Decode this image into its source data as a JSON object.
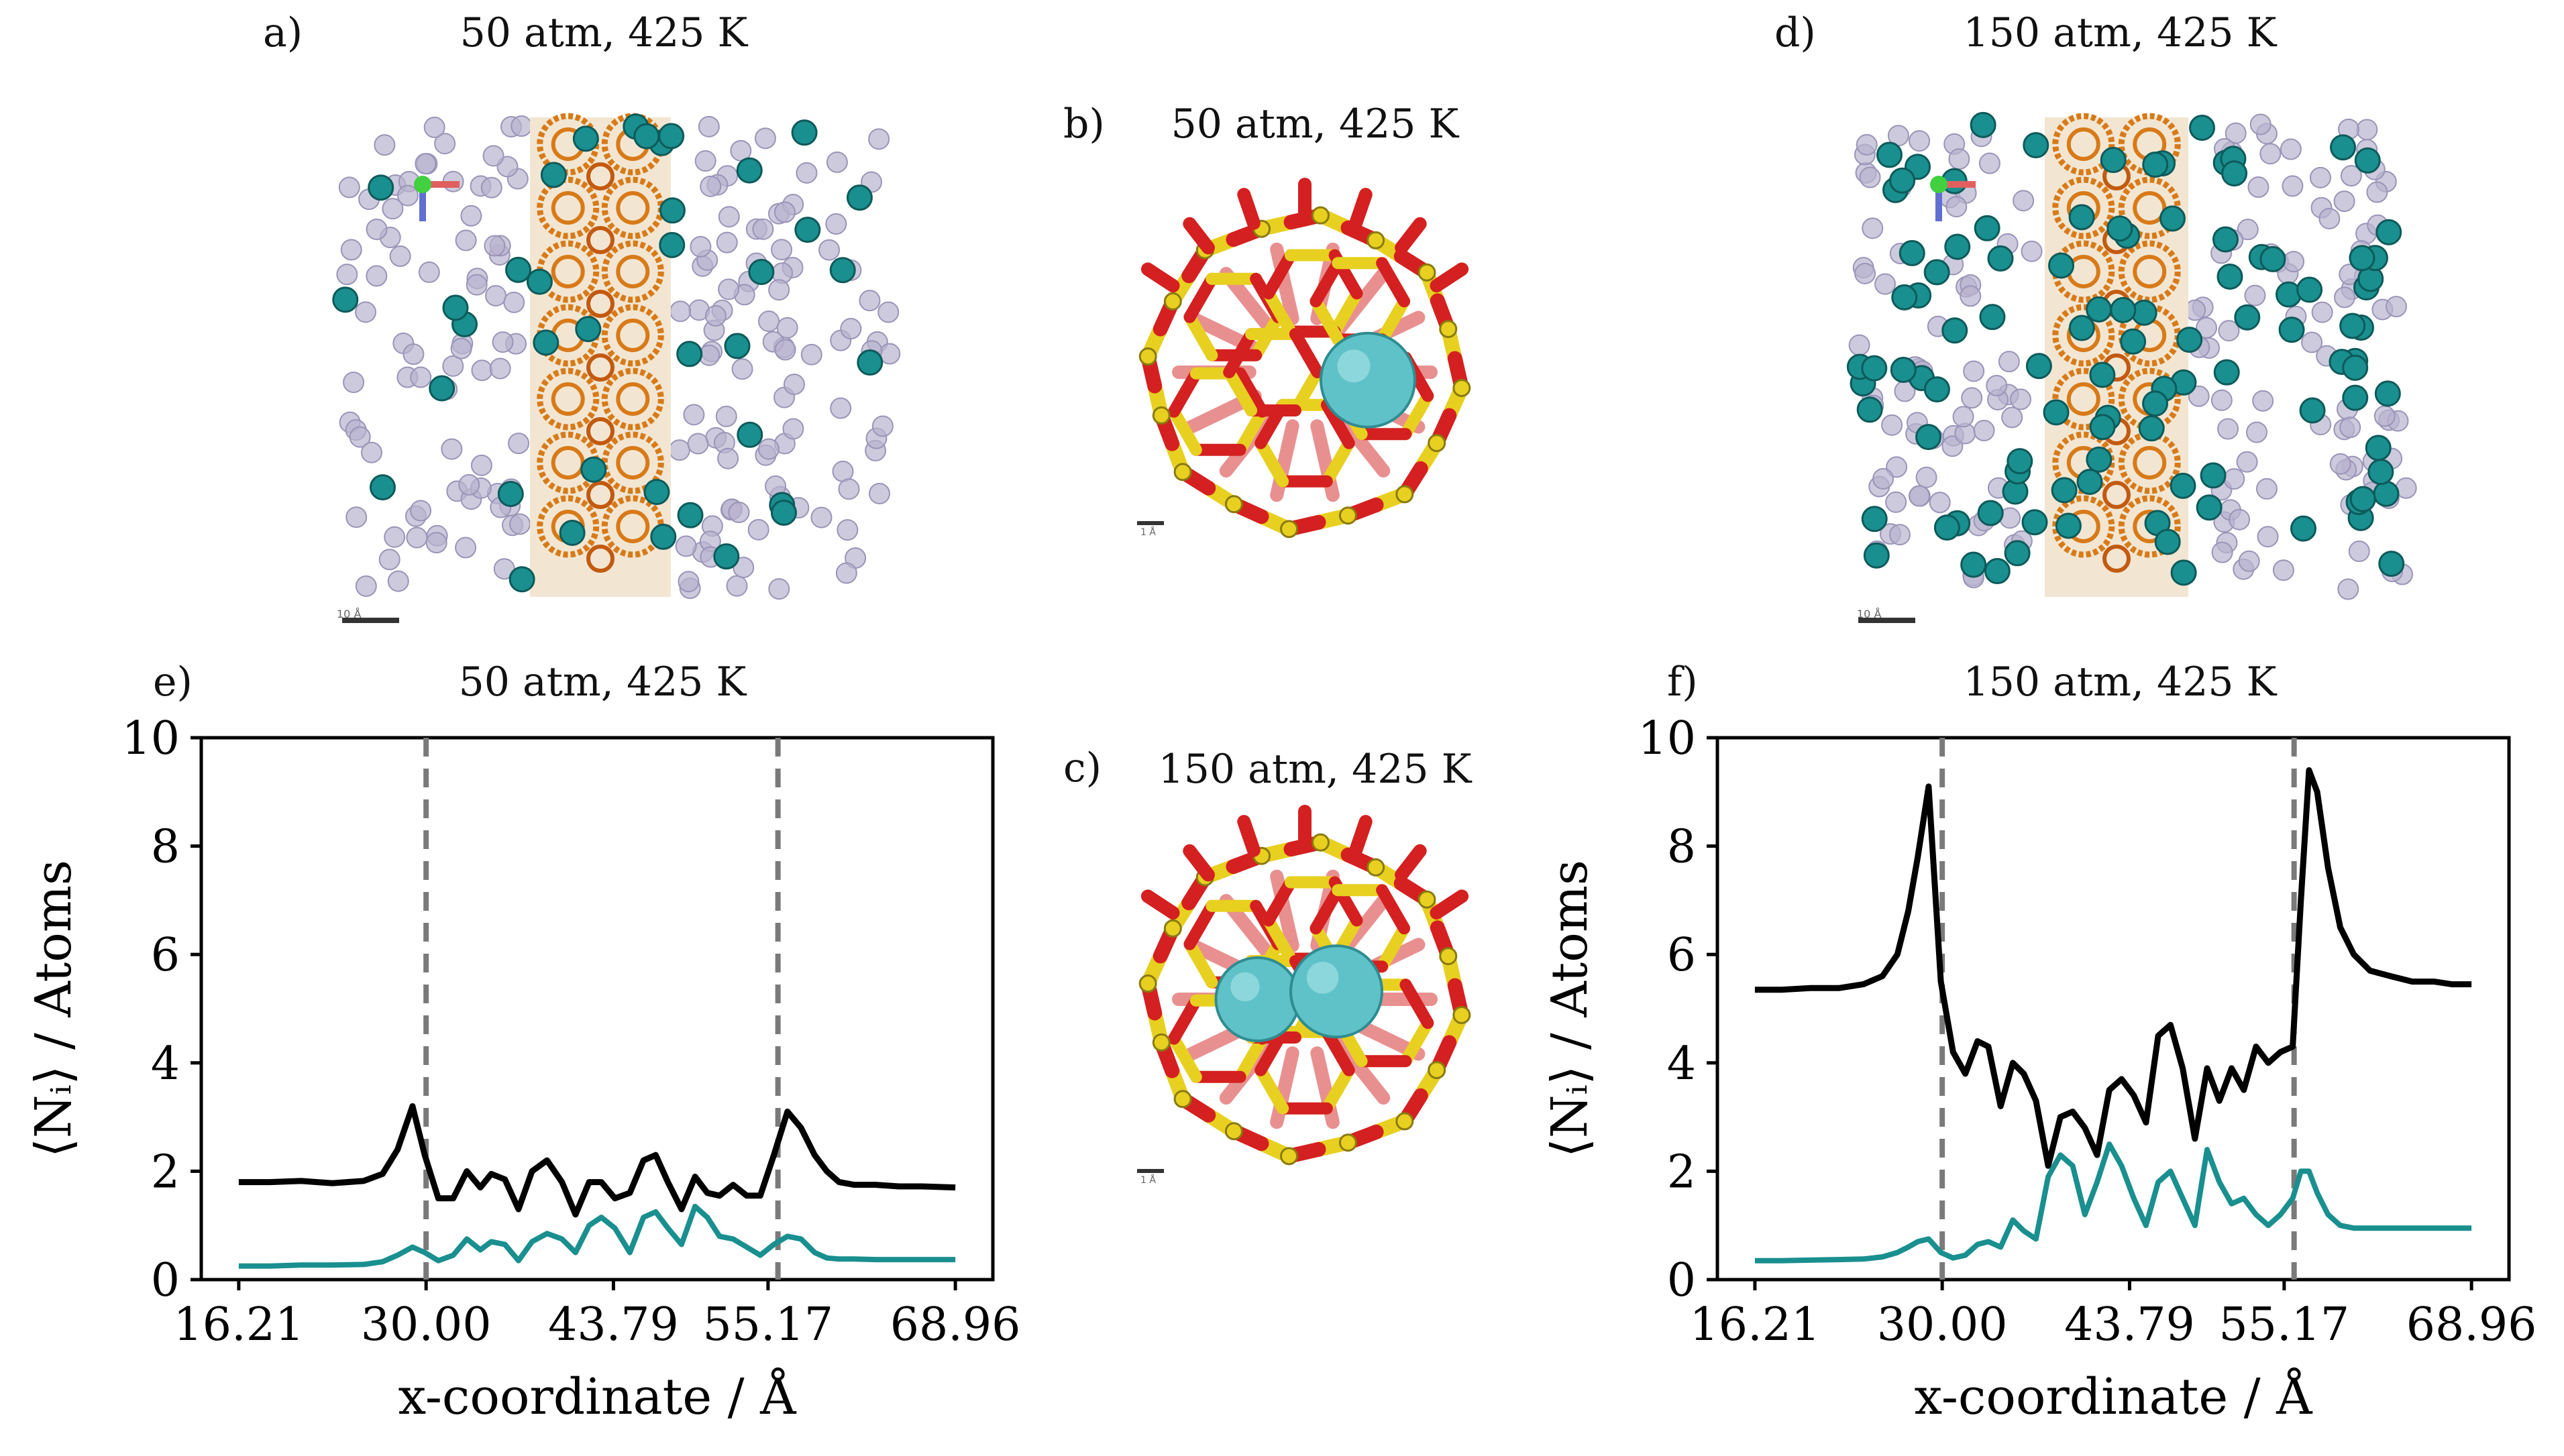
{
  "panels": {
    "a": {
      "label": "a)",
      "title": "50 atm, 425 K",
      "scalebar": "10 Å"
    },
    "b": {
      "label": "b)",
      "title": "50 atm, 425 K",
      "scalebar": "1 Å"
    },
    "c": {
      "label": "c)",
      "title": "150 atm, 425 K",
      "scalebar": "1 Å"
    },
    "d": {
      "label": "d)",
      "title": "150 atm, 425 K",
      "scalebar": "10 Å"
    },
    "e": {
      "label": "e)",
      "title": "50 atm, 425 K"
    },
    "f": {
      "label": "f)",
      "title": "150 atm, 425 K"
    }
  },
  "colors": {
    "teal": "#1a8f8f",
    "black": "#000000",
    "zeolite_red": "#d42020",
    "zeolite_yellow": "#e8d020",
    "framework_orange": "#d87a18",
    "ghost": "#b9b4cf",
    "dashed": "#7a7a7a"
  },
  "chart_data": [
    {
      "type": "line",
      "panel": "e",
      "title": "50 atm, 425 K",
      "xlabel": "x-coordinate / Å",
      "ylabel": "⟨Nᵢ⟩ / Atoms",
      "xlim": [
        13.45,
        71.72
      ],
      "ylim": [
        0,
        10
      ],
      "xticks": [
        16.21,
        30.0,
        43.79,
        55.17,
        68.96
      ],
      "xticklabels": [
        "16.21",
        "30.00",
        "43.79",
        "55.17",
        "68.96"
      ],
      "yticks": [
        0,
        2,
        4,
        6,
        8,
        10
      ],
      "yticklabels": [
        "0",
        "2",
        "4",
        "6",
        "8",
        "10"
      ],
      "vlines": [
        30.0,
        55.9
      ],
      "series": [
        {
          "name": "total",
          "color": "#000000",
          "x": [
            16.21,
            18.5,
            20.8,
            23.1,
            25.4,
            26.8,
            27.9,
            29.0,
            29.9,
            30.9,
            32.0,
            33.0,
            34.0,
            34.8,
            35.8,
            36.8,
            37.8,
            38.9,
            40.0,
            41.0,
            42.0,
            42.9,
            43.9,
            45.0,
            46.0,
            46.9,
            47.8,
            48.8,
            49.8,
            50.7,
            51.6,
            52.6,
            53.6,
            54.6,
            55.6,
            56.6,
            57.6,
            58.6,
            59.5,
            60.4,
            61.5,
            63.1,
            64.8,
            66.5,
            68.96
          ],
          "y": [
            1.8,
            1.8,
            1.82,
            1.78,
            1.82,
            1.95,
            2.4,
            3.2,
            2.3,
            1.5,
            1.5,
            2.0,
            1.7,
            1.95,
            1.85,
            1.3,
            2.0,
            2.2,
            1.8,
            1.2,
            1.8,
            1.8,
            1.5,
            1.6,
            2.2,
            2.3,
            1.8,
            1.3,
            1.9,
            1.6,
            1.55,
            1.75,
            1.55,
            1.55,
            2.3,
            3.1,
            2.8,
            2.3,
            2.0,
            1.8,
            1.75,
            1.75,
            1.72,
            1.72,
            1.7
          ]
        },
        {
          "name": "teal",
          "color": "#1a8f8f",
          "x": [
            16.21,
            18.5,
            20.8,
            23.1,
            25.4,
            26.8,
            27.9,
            29.0,
            29.9,
            30.9,
            32.0,
            33.0,
            34.0,
            34.8,
            35.8,
            36.8,
            37.8,
            38.9,
            40.0,
            41.0,
            42.0,
            42.9,
            43.9,
            45.0,
            46.0,
            46.9,
            47.8,
            48.8,
            49.8,
            50.7,
            51.6,
            52.6,
            53.6,
            54.6,
            55.6,
            56.6,
            57.6,
            58.6,
            59.5,
            60.4,
            61.5,
            63.1,
            64.8,
            66.5,
            68.96
          ],
          "y": [
            0.25,
            0.25,
            0.27,
            0.27,
            0.28,
            0.33,
            0.45,
            0.6,
            0.5,
            0.35,
            0.45,
            0.75,
            0.55,
            0.7,
            0.65,
            0.35,
            0.7,
            0.85,
            0.75,
            0.5,
            1.0,
            1.15,
            0.95,
            0.5,
            1.15,
            1.25,
            0.95,
            0.65,
            1.35,
            1.15,
            0.8,
            0.75,
            0.6,
            0.45,
            0.65,
            0.8,
            0.75,
            0.5,
            0.4,
            0.38,
            0.38,
            0.37,
            0.37,
            0.37,
            0.37
          ]
        }
      ]
    },
    {
      "type": "line",
      "panel": "f",
      "title": "150 atm, 425 K",
      "xlabel": "x-coordinate / Å",
      "ylabel": "⟨Nᵢ⟩ / Atoms",
      "xlim": [
        13.45,
        71.72
      ],
      "ylim": [
        0,
        10
      ],
      "xticks": [
        16.21,
        30.0,
        43.79,
        55.17,
        68.96
      ],
      "xticklabels": [
        "16.21",
        "30.00",
        "43.79",
        "55.17",
        "68.96"
      ],
      "yticks": [
        0,
        2,
        4,
        6,
        8,
        10
      ],
      "yticklabels": [
        "0",
        "2",
        "4",
        "6",
        "8",
        "10"
      ],
      "vlines": [
        30.0,
        55.9
      ],
      "series": [
        {
          "name": "total",
          "color": "#000000",
          "x": [
            16.21,
            18.2,
            20.3,
            22.4,
            24.2,
            25.6,
            26.7,
            27.5,
            28.2,
            29.0,
            29.9,
            30.8,
            31.7,
            32.6,
            33.4,
            34.3,
            35.2,
            36.0,
            36.9,
            37.8,
            38.7,
            39.6,
            40.5,
            41.4,
            42.3,
            43.2,
            44.1,
            45.0,
            45.9,
            46.8,
            47.7,
            48.6,
            49.5,
            50.4,
            51.3,
            52.2,
            53.1,
            54.0,
            54.9,
            55.8,
            56.4,
            57.0,
            57.6,
            58.4,
            59.3,
            60.3,
            61.5,
            63.0,
            64.6,
            66.2,
            67.5,
            68.96
          ],
          "y": [
            5.35,
            5.35,
            5.38,
            5.38,
            5.45,
            5.6,
            6.0,
            6.8,
            7.8,
            9.1,
            5.5,
            4.2,
            3.8,
            4.4,
            4.3,
            3.2,
            4.0,
            3.8,
            3.3,
            2.1,
            3.0,
            3.1,
            2.8,
            2.3,
            3.5,
            3.7,
            3.4,
            2.9,
            4.5,
            4.7,
            3.9,
            2.6,
            3.9,
            3.3,
            3.9,
            3.5,
            4.3,
            4.0,
            4.2,
            4.3,
            7.0,
            9.4,
            9.0,
            7.6,
            6.5,
            6.0,
            5.7,
            5.6,
            5.5,
            5.5,
            5.45,
            5.45
          ]
        },
        {
          "name": "teal",
          "color": "#1a8f8f",
          "x": [
            16.21,
            18.2,
            20.3,
            22.4,
            24.2,
            25.6,
            26.7,
            27.5,
            28.2,
            29.0,
            29.9,
            30.8,
            31.7,
            32.6,
            33.4,
            34.3,
            35.2,
            36.0,
            36.9,
            37.8,
            38.7,
            39.6,
            40.5,
            41.4,
            42.3,
            43.2,
            44.1,
            45.0,
            45.9,
            46.8,
            47.7,
            48.6,
            49.5,
            50.4,
            51.3,
            52.2,
            53.1,
            54.0,
            54.9,
            55.8,
            56.4,
            57.0,
            57.6,
            58.4,
            59.3,
            60.3,
            61.5,
            63.0,
            64.6,
            66.2,
            67.5,
            68.96
          ],
          "y": [
            0.35,
            0.35,
            0.36,
            0.37,
            0.38,
            0.42,
            0.5,
            0.6,
            0.7,
            0.75,
            0.5,
            0.4,
            0.45,
            0.65,
            0.7,
            0.6,
            1.1,
            0.9,
            0.75,
            1.9,
            2.3,
            2.1,
            1.2,
            1.8,
            2.5,
            2.1,
            1.5,
            1.0,
            1.8,
            2.0,
            1.5,
            1.0,
            2.4,
            1.8,
            1.4,
            1.5,
            1.2,
            1.0,
            1.2,
            1.5,
            2.0,
            2.0,
            1.6,
            1.2,
            1.0,
            0.95,
            0.95,
            0.95,
            0.95,
            0.95,
            0.95,
            0.95
          ]
        }
      ]
    }
  ]
}
